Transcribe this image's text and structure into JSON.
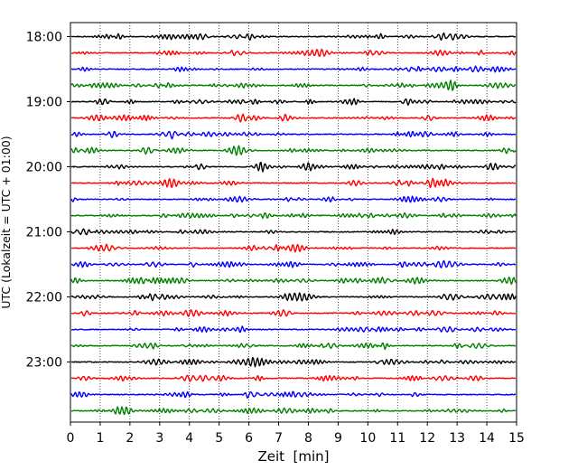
{
  "chart_data": {
    "type": "line",
    "title": "",
    "xlabel": "Zeit  [min]",
    "ylabel": "UTC (Lokalzeit = UTC + 01:00)",
    "xlim": [
      0,
      15
    ],
    "x_ticks": [
      "0",
      "1",
      "2",
      "3",
      "4",
      "5",
      "6",
      "7",
      "8",
      "9",
      "10",
      "11",
      "12",
      "13",
      "14",
      "15"
    ],
    "y_ticks": [
      "18:00",
      "19:00",
      "20:00",
      "21:00",
      "22:00",
      "23:00"
    ],
    "grid": "vertical dotted",
    "legend": "none",
    "trace_colors": [
      "#000000",
      "#ff0000",
      "#0000ff",
      "#008000"
    ],
    "traces": [
      {
        "start": "18:00",
        "color": "#000000"
      },
      {
        "start": "18:15",
        "color": "#ff0000"
      },
      {
        "start": "18:30",
        "color": "#0000ff"
      },
      {
        "start": "18:45",
        "color": "#008000"
      },
      {
        "start": "19:00",
        "color": "#000000"
      },
      {
        "start": "19:15",
        "color": "#ff0000"
      },
      {
        "start": "19:30",
        "color": "#0000ff"
      },
      {
        "start": "19:45",
        "color": "#008000"
      },
      {
        "start": "20:00",
        "color": "#000000"
      },
      {
        "start": "20:15",
        "color": "#ff0000"
      },
      {
        "start": "20:30",
        "color": "#0000ff"
      },
      {
        "start": "20:45",
        "color": "#008000"
      },
      {
        "start": "21:00",
        "color": "#000000"
      },
      {
        "start": "21:15",
        "color": "#ff0000"
      },
      {
        "start": "21:30",
        "color": "#0000ff"
      },
      {
        "start": "21:45",
        "color": "#008000"
      },
      {
        "start": "22:00",
        "color": "#000000"
      },
      {
        "start": "22:15",
        "color": "#ff0000"
      },
      {
        "start": "22:30",
        "color": "#0000ff"
      },
      {
        "start": "22:45",
        "color": "#008000"
      },
      {
        "start": "23:00",
        "color": "#000000"
      },
      {
        "start": "23:15",
        "color": "#ff0000"
      },
      {
        "start": "23:30",
        "color": "#0000ff"
      },
      {
        "start": "23:45",
        "color": "#008000"
      }
    ]
  }
}
